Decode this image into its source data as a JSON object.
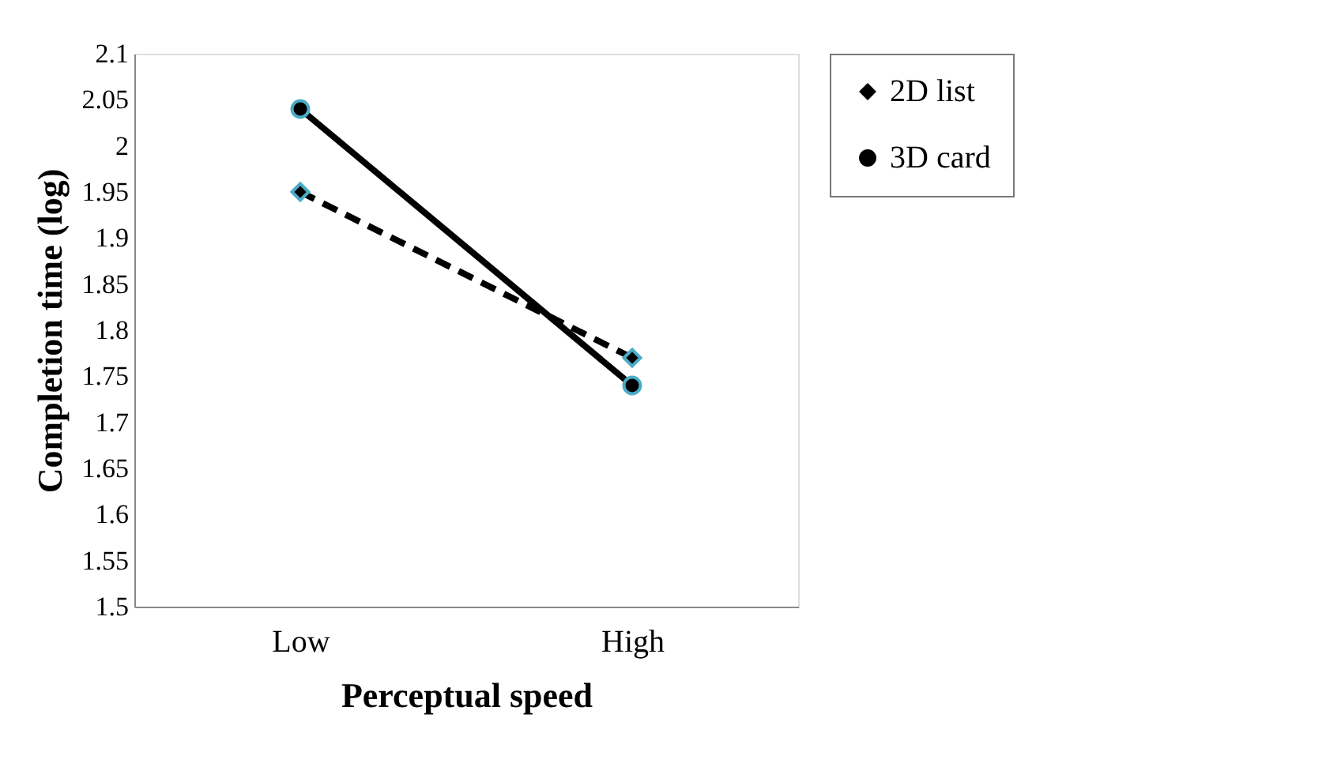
{
  "chart_data": {
    "type": "line",
    "xlabel": "Perceptual speed",
    "ylabel": "Completion time (log)",
    "categories": [
      "Low",
      "High"
    ],
    "series": [
      {
        "name": "2D list",
        "color": "#000000",
        "values": [
          1.95,
          1.77
        ],
        "marker": "diamond",
        "line_style": "dashed"
      },
      {
        "name": "3D card",
        "color": "#000000",
        "values": [
          2.04,
          1.74
        ],
        "marker": "circle",
        "line_style": "solid"
      }
    ],
    "ylim": [
      1.5,
      2.1
    ],
    "yticks": [
      1.5,
      1.55,
      1.6,
      1.65,
      1.7,
      1.75,
      1.8,
      1.85,
      1.9,
      1.95,
      2,
      2.05,
      2.1
    ],
    "grid": false,
    "legend": "top right"
  }
}
